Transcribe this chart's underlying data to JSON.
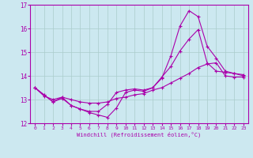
{
  "xlabel": "Windchill (Refroidissement éolien,°C)",
  "background_color": "#cce8f0",
  "grid_color": "#aacccc",
  "line_color": "#aa00aa",
  "hours": [
    0,
    1,
    2,
    3,
    4,
    5,
    6,
    7,
    8,
    9,
    10,
    11,
    12,
    13,
    14,
    15,
    16,
    17,
    18,
    19,
    20,
    21,
    22,
    23
  ],
  "line_max": [
    13.5,
    13.2,
    12.9,
    13.1,
    12.75,
    12.6,
    12.45,
    12.35,
    12.25,
    12.65,
    13.3,
    13.4,
    13.35,
    13.5,
    13.9,
    14.85,
    16.1,
    16.75,
    16.5,
    15.25,
    14.75,
    14.2,
    14.1,
    14.05
  ],
  "line_mid": [
    13.5,
    13.2,
    12.9,
    13.05,
    12.75,
    12.6,
    12.5,
    12.5,
    12.8,
    13.3,
    13.4,
    13.45,
    13.4,
    13.5,
    13.95,
    14.4,
    15.05,
    15.55,
    15.95,
    14.55,
    14.2,
    14.15,
    14.1,
    14.0
  ],
  "line_min": [
    13.5,
    13.15,
    13.0,
    13.1,
    13.0,
    12.9,
    12.85,
    12.85,
    12.9,
    13.05,
    13.1,
    13.2,
    13.25,
    13.4,
    13.5,
    13.7,
    13.9,
    14.1,
    14.35,
    14.5,
    14.55,
    14.0,
    13.95,
    13.95
  ],
  "ylim": [
    12.0,
    17.0
  ],
  "xlim": [
    -0.5,
    23.5
  ],
  "yticks": [
    12,
    13,
    14,
    15,
    16,
    17
  ],
  "xticks": [
    0,
    1,
    2,
    3,
    4,
    5,
    6,
    7,
    8,
    9,
    10,
    11,
    12,
    13,
    14,
    15,
    16,
    17,
    18,
    19,
    20,
    21,
    22,
    23
  ]
}
